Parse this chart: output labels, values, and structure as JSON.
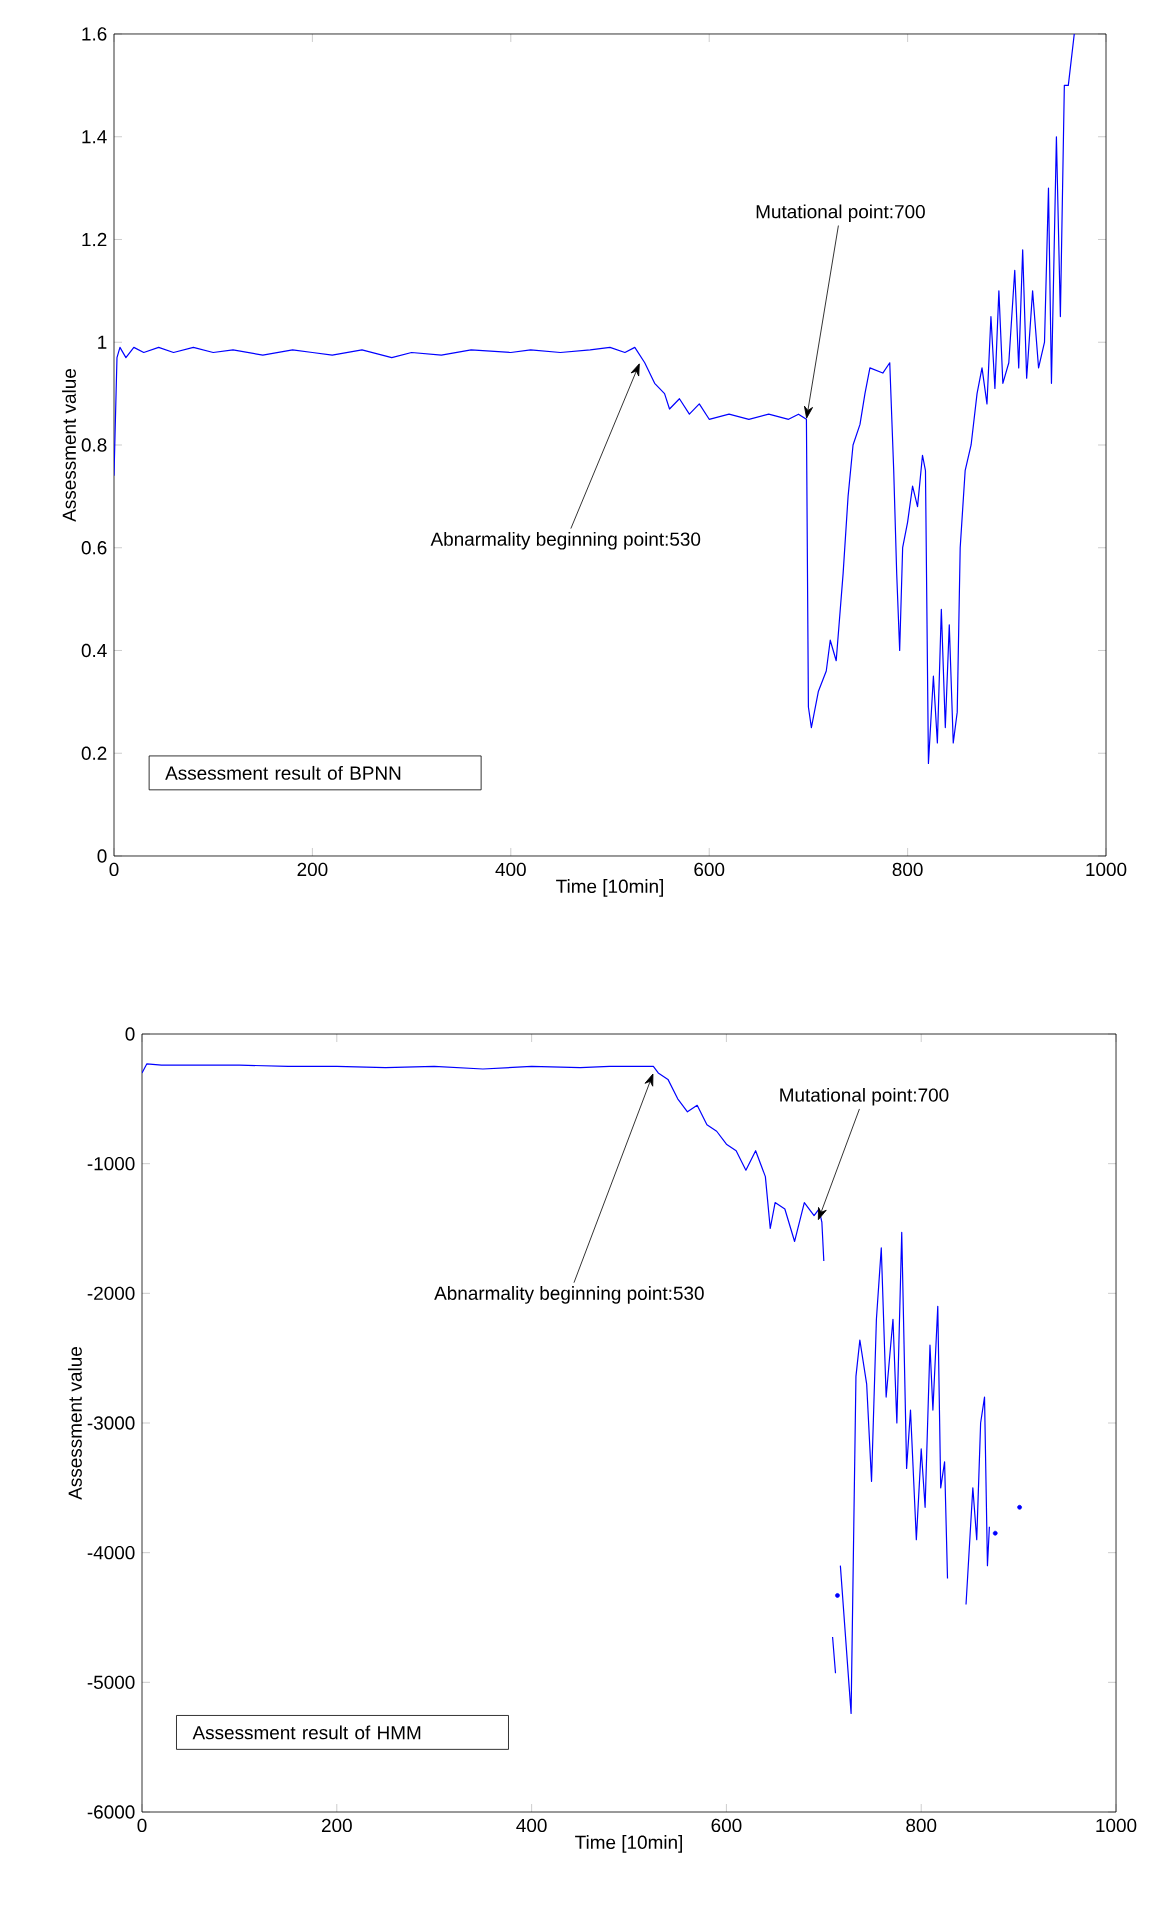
{
  "chart_data": [
    {
      "type": "line",
      "xlabel": "Time [10min]",
      "ylabel": "Assessment value",
      "xlim": [
        0,
        1000
      ],
      "ylim": [
        0,
        1.6
      ],
      "xticks": [
        0,
        200,
        400,
        600,
        800,
        1000
      ],
      "yticks": [
        0,
        0.2,
        0.4,
        0.6,
        0.8,
        1,
        1.2,
        1.4,
        1.6
      ],
      "annotations": [
        "Assessment result of BPNN",
        {
          "text": "Abnarmality beginning point:530",
          "x": 530,
          "y": 0.96
        },
        {
          "text": "Mutational point:700",
          "x": 698,
          "y": 0.85
        }
      ],
      "series": [
        {
          "color": "#0000ff",
          "marker": "none",
          "x": [
            0,
            3,
            6,
            12,
            20,
            30,
            45,
            60,
            80,
            100,
            120,
            150,
            180,
            200,
            220,
            250,
            280,
            300,
            330,
            360,
            400,
            420,
            450,
            480,
            500,
            515,
            525,
            535,
            545,
            555,
            560,
            570,
            580,
            590,
            600,
            620,
            640,
            660,
            680,
            690,
            698,
            700,
            703,
            710,
            718,
            722,
            728,
            735,
            740,
            745,
            752,
            757,
            762,
            775,
            782,
            786,
            789,
            792,
            795,
            800,
            805,
            810,
            815,
            818,
            821,
            826,
            830,
            834,
            838,
            842,
            846,
            850,
            853,
            858,
            864,
            870,
            875,
            880,
            884,
            888,
            892,
            896,
            902,
            908,
            912,
            916,
            920,
            926,
            932,
            938,
            942,
            945,
            950,
            954,
            958,
            962,
            968
          ],
          "values": [
            0.74,
            0.97,
            0.99,
            0.97,
            0.99,
            0.98,
            0.99,
            0.98,
            0.99,
            0.98,
            0.985,
            0.975,
            0.985,
            0.98,
            0.975,
            0.985,
            0.97,
            0.98,
            0.975,
            0.985,
            0.98,
            0.985,
            0.98,
            0.985,
            0.99,
            0.98,
            0.99,
            0.96,
            0.92,
            0.9,
            0.87,
            0.89,
            0.86,
            0.88,
            0.85,
            0.86,
            0.85,
            0.86,
            0.85,
            0.86,
            0.85,
            0.29,
            0.25,
            0.32,
            0.36,
            0.42,
            0.38,
            0.55,
            0.7,
            0.8,
            0.84,
            0.9,
            0.95,
            0.94,
            0.96,
            0.75,
            0.55,
            0.4,
            0.6,
            0.65,
            0.72,
            0.68,
            0.78,
            0.75,
            0.18,
            0.35,
            0.22,
            0.48,
            0.25,
            0.45,
            0.22,
            0.28,
            0.6,
            0.75,
            0.8,
            0.9,
            0.95,
            0.88,
            1.05,
            0.91,
            1.1,
            0.92,
            0.96,
            1.14,
            0.95,
            1.18,
            0.93,
            1.1,
            0.95,
            1.0,
            1.3,
            0.92,
            1.4,
            1.05,
            1.5,
            1.5,
            1.6
          ]
        }
      ]
    },
    {
      "type": "line",
      "xlabel": "Time [10min]",
      "ylabel": "Assessment value",
      "xlim": [
        0,
        1000
      ],
      "ylim": [
        -6000,
        0
      ],
      "xticks": [
        0,
        200,
        400,
        600,
        800,
        1000
      ],
      "yticks": [
        -6000,
        -5000,
        -4000,
        -3000,
        -2000,
        -1000,
        0
      ],
      "annotations": [
        "Assessment result of HMM",
        {
          "text": "Abnarmality beginning point:530",
          "x": 525,
          "y": -300
        },
        {
          "text": "Mutational point:700",
          "x": 694,
          "y": -1440
        }
      ],
      "series": [
        {
          "color": "#0000ff",
          "marker": "none",
          "x": [
            0,
            5,
            20,
            50,
            100,
            150,
            200,
            250,
            300,
            350,
            400,
            450,
            480,
            500,
            525,
            530,
            540,
            550,
            560,
            570,
            580,
            590,
            600,
            610,
            620,
            630,
            640,
            645,
            650,
            660,
            670,
            680,
            690,
            695,
            698,
            700,
            705,
            709,
            712,
            715,
            717,
            728,
            733,
            737,
            744,
            749,
            754,
            759,
            764,
            771,
            775,
            780,
            785,
            789,
            795,
            800,
            804,
            809,
            812,
            817,
            820,
            824,
            827,
            836,
            846,
            853,
            857,
            861,
            865,
            868,
            870
          ],
          "values": [
            -300,
            -230,
            -240,
            -240,
            -240,
            -250,
            -250,
            -260,
            -250,
            -270,
            -250,
            -260,
            -250,
            -250,
            -250,
            -300,
            -350,
            -500,
            -600,
            -550,
            -700,
            -750,
            -850,
            -900,
            -1050,
            -900,
            -1100,
            -1500,
            -1300,
            -1350,
            -1600,
            -1300,
            -1400,
            -1350,
            -1450,
            -1750,
            null,
            -4650,
            -4930,
            null,
            -4100,
            -5240,
            -2640,
            -2360,
            -2700,
            -3450,
            -2200,
            -1650,
            -2800,
            -2200,
            -3000,
            -1530,
            -3350,
            -2900,
            -3900,
            -3200,
            -3650,
            -2400,
            -2900,
            -2100,
            -3500,
            -3300,
            -4200,
            null,
            -4400,
            -3500,
            -3900,
            -3000,
            -2800,
            -4100,
            -3800
          ]
        },
        {
          "type": "scatter",
          "color": "#0000ff",
          "marker": "circle",
          "x": [
            714,
            876,
            901
          ],
          "values": [
            -4330,
            -3850,
            -3650
          ]
        }
      ]
    }
  ]
}
